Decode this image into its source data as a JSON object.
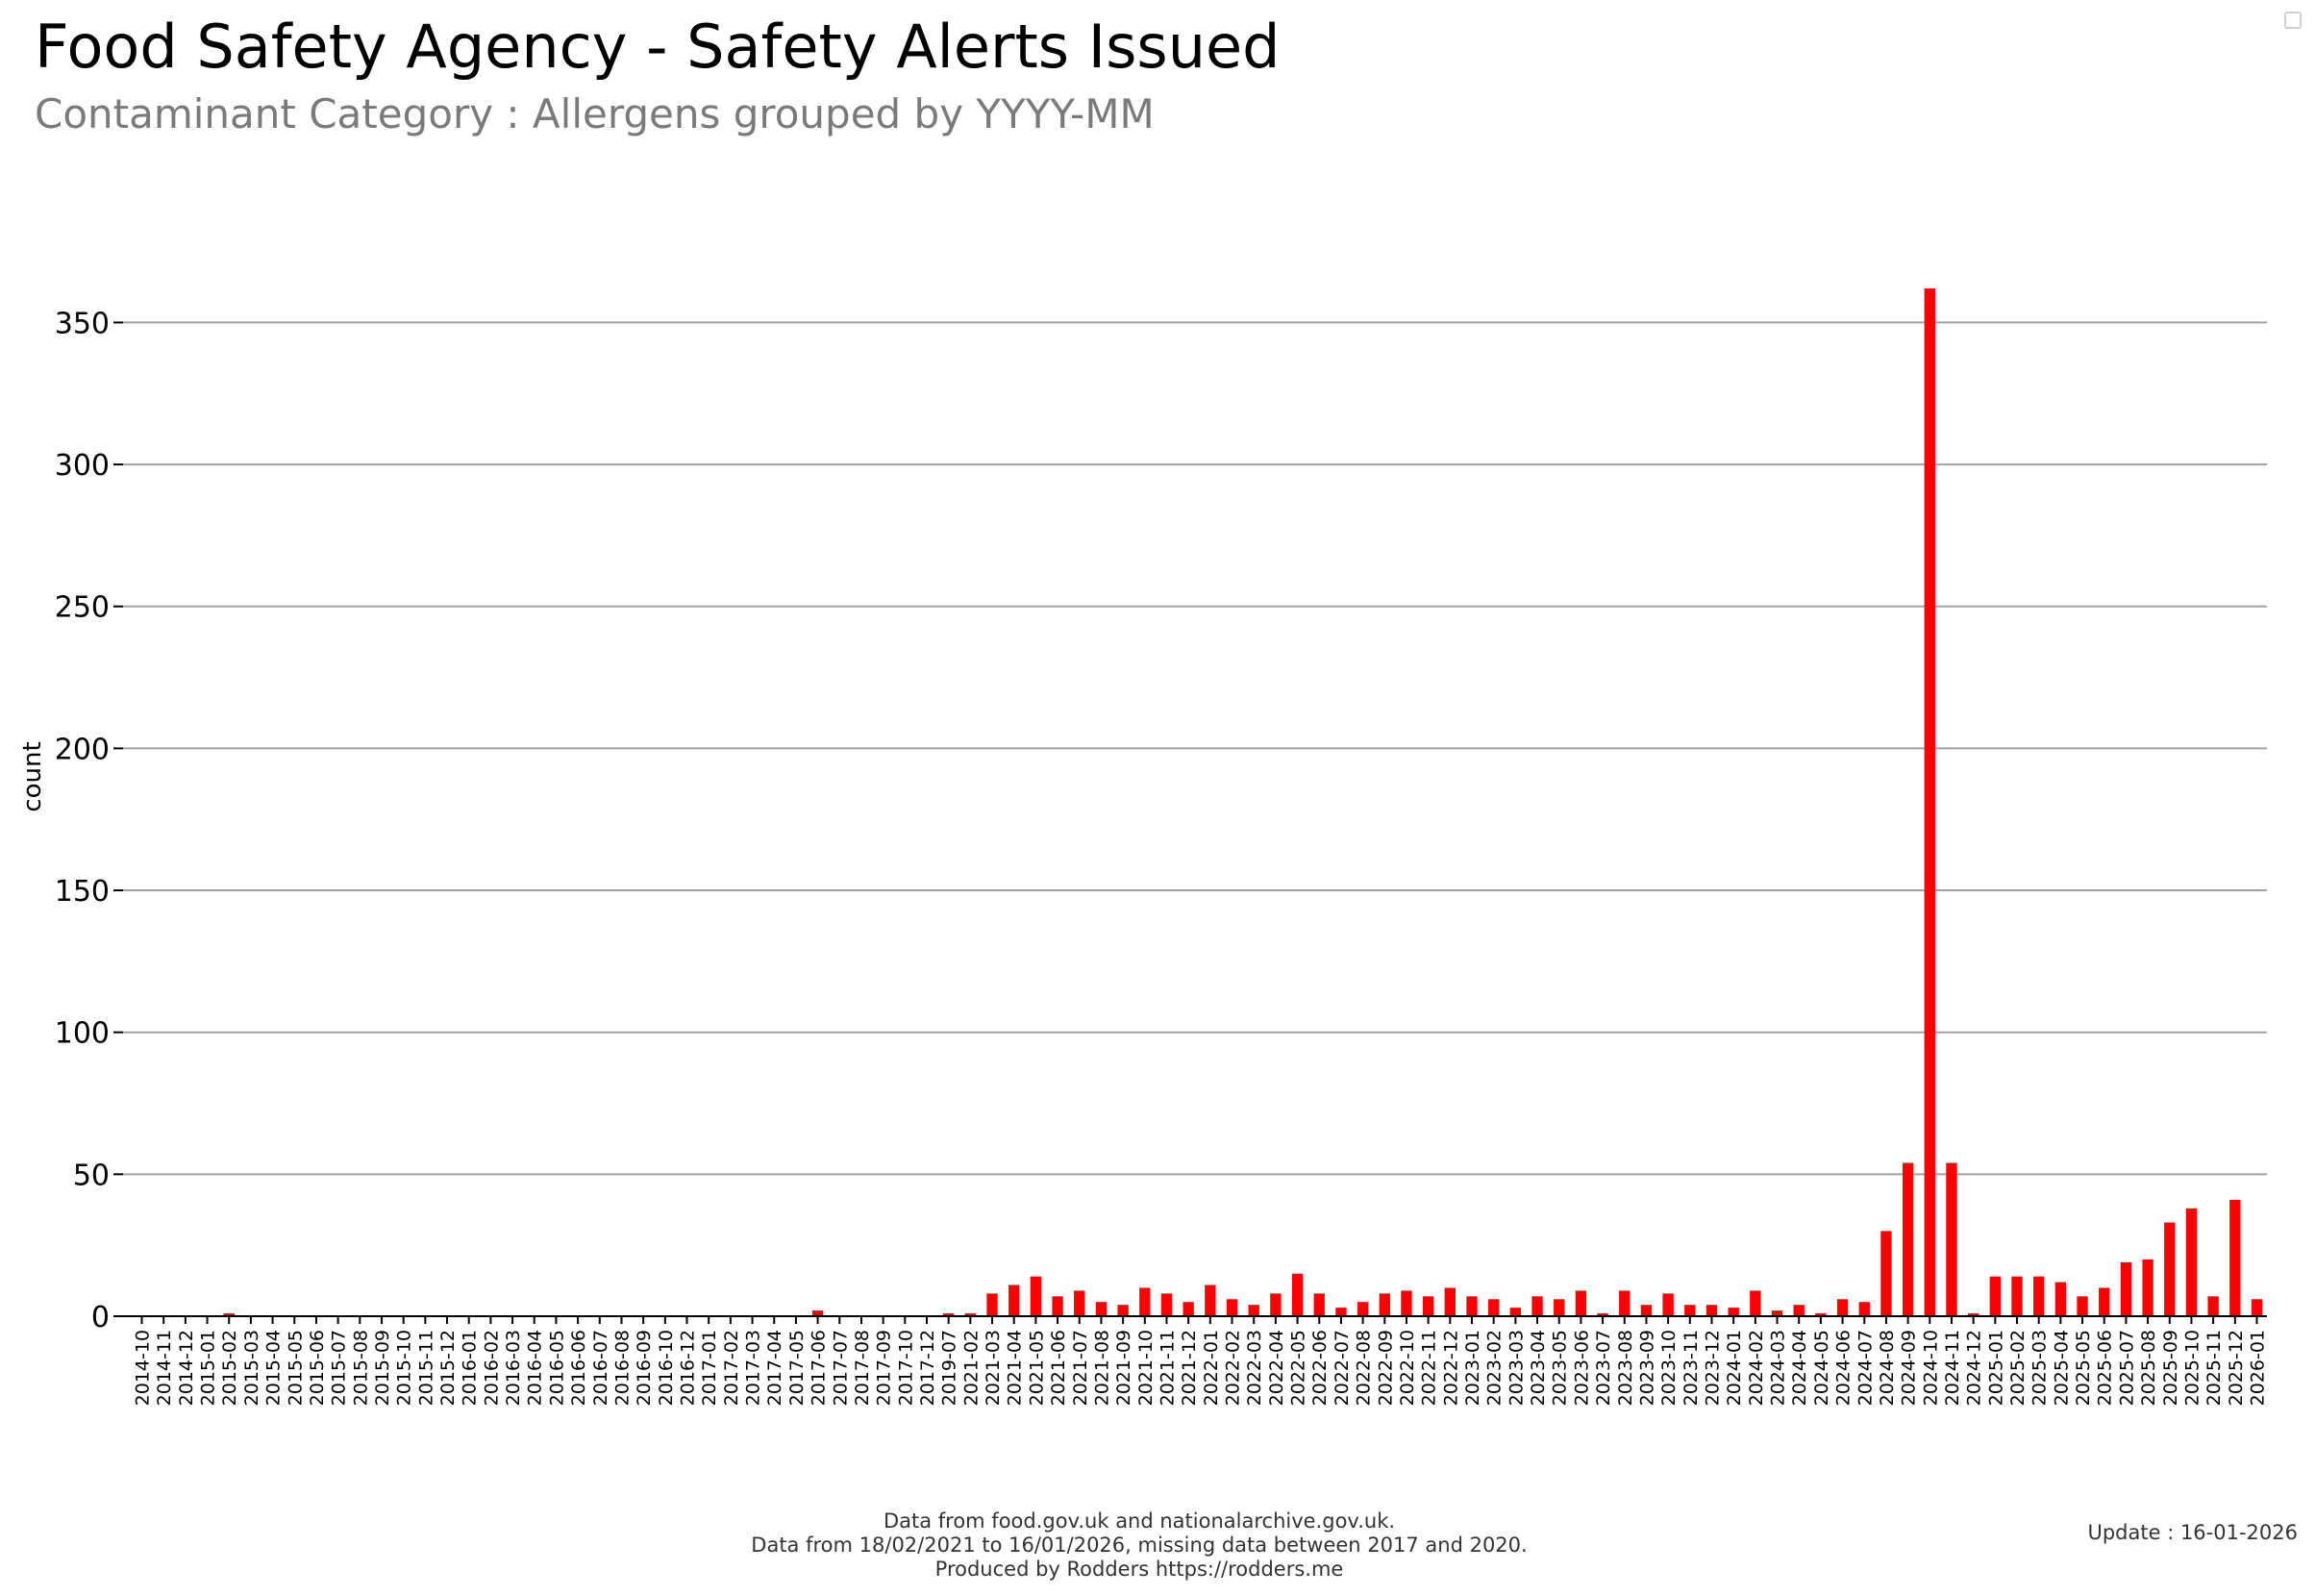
{
  "colors": {
    "bar": "#ff0000",
    "grid": "#a0a0a0",
    "subtitle": "#7a7a7a"
  },
  "chart_data": {
    "type": "bar",
    "title": "Food Safety Agency - Safety Alerts Issued",
    "subtitle": "Contaminant Category : Allergens grouped by YYYY-MM",
    "xlabel": "",
    "ylabel": "count",
    "ylim": [
      0,
      362
    ],
    "yticks": [
      0,
      50,
      100,
      150,
      200,
      250,
      300,
      350
    ],
    "grid": true,
    "categories": [
      "2014-10",
      "2014-11",
      "2014-12",
      "2015-01",
      "2015-02",
      "2015-03",
      "2015-04",
      "2015-05",
      "2015-06",
      "2015-07",
      "2015-08",
      "2015-09",
      "2015-10",
      "2015-11",
      "2015-12",
      "2016-01",
      "2016-02",
      "2016-03",
      "2016-04",
      "2016-05",
      "2016-06",
      "2016-07",
      "2016-08",
      "2016-09",
      "2016-10",
      "2016-12",
      "2017-01",
      "2017-02",
      "2017-03",
      "2017-04",
      "2017-05",
      "2017-06",
      "2017-07",
      "2017-08",
      "2017-09",
      "2017-10",
      "2017-12",
      "2019-07",
      "2021-02",
      "2021-03",
      "2021-04",
      "2021-05",
      "2021-06",
      "2021-07",
      "2021-08",
      "2021-09",
      "2021-10",
      "2021-11",
      "2021-12",
      "2022-01",
      "2022-02",
      "2022-03",
      "2022-04",
      "2022-05",
      "2022-06",
      "2022-07",
      "2022-08",
      "2022-09",
      "2022-10",
      "2022-11",
      "2022-12",
      "2023-01",
      "2023-02",
      "2023-03",
      "2023-04",
      "2023-05",
      "2023-06",
      "2023-07",
      "2023-08",
      "2023-09",
      "2023-10",
      "2023-11",
      "2023-12",
      "2024-01",
      "2024-02",
      "2024-03",
      "2024-04",
      "2024-05",
      "2024-06",
      "2024-07",
      "2024-08",
      "2024-09",
      "2024-10",
      "2024-11",
      "2024-12",
      "2025-01",
      "2025-02",
      "2025-03",
      "2025-04",
      "2025-05",
      "2025-06",
      "2025-07",
      "2025-08",
      "2025-09",
      "2025-10",
      "2025-11",
      "2025-12",
      "2026-01"
    ],
    "values": [
      0,
      0,
      0,
      0,
      1,
      0,
      0,
      0,
      0,
      0,
      0,
      0,
      0,
      0,
      0,
      0,
      0,
      0,
      0,
      0,
      0,
      0,
      0,
      0,
      0,
      0,
      0,
      0,
      0,
      0,
      0,
      2,
      0,
      0,
      0,
      0,
      0,
      1,
      1,
      8,
      11,
      14,
      7,
      9,
      5,
      4,
      10,
      8,
      5,
      11,
      6,
      4,
      8,
      15,
      8,
      3,
      5,
      8,
      9,
      7,
      10,
      7,
      6,
      3,
      7,
      6,
      9,
      1,
      9,
      4,
      8,
      4,
      4,
      3,
      9,
      2,
      4,
      1,
      6,
      5,
      30,
      54,
      362,
      54,
      1,
      14,
      14,
      14,
      12,
      7,
      10,
      19,
      20,
      33,
      38,
      7,
      41,
      6
    ]
  },
  "footer": {
    "line1": "Data from food.gov.uk and nationalarchive.gov.uk.",
    "line2": "Data from 18/02/2021 to 16/01/2026, missing data between 2017 and 2020.",
    "line3": "Produced by Rodders https://rodders.me"
  },
  "update_text": "Update : 16-01-2026"
}
